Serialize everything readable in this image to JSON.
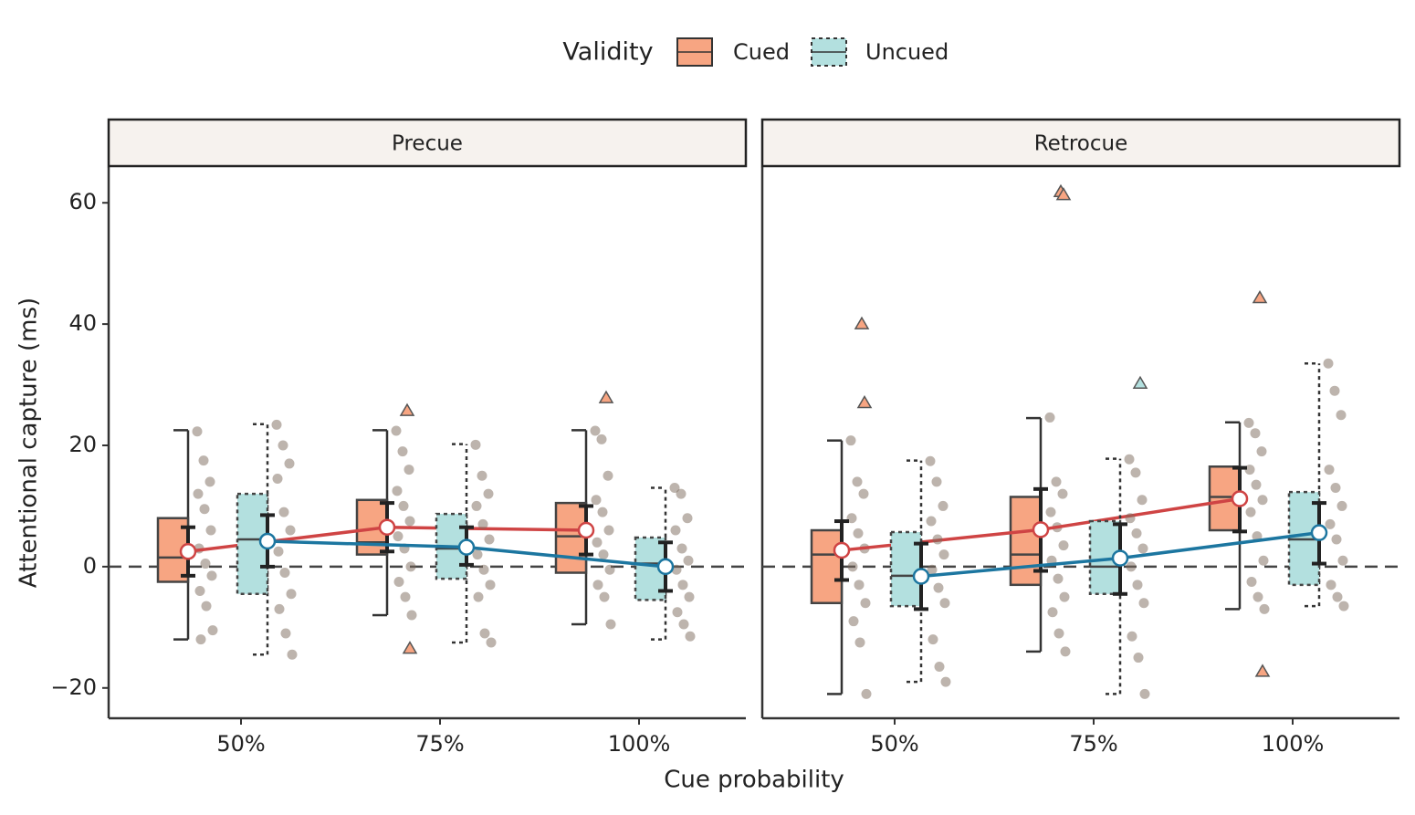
{
  "chart_data": {
    "type": "box",
    "legend_title": "Validity",
    "x_label": "Cue probability",
    "y_label": "Attentional capture (ms)",
    "facets": [
      "Precue",
      "Retrocue"
    ],
    "categories": [
      "50%",
      "75%",
      "100%"
    ],
    "ylim": [
      -25,
      65.9
    ],
    "yticks": [
      {
        "value": -20,
        "label": "−20"
      },
      0,
      20,
      40,
      60
    ],
    "hline": 0,
    "legend_position": "top",
    "point_color": "#7b6a5b",
    "series": [
      {
        "name": "Cued",
        "color": "#f7a582",
        "line_color": "#cf4444",
        "border": "solid",
        "panels": [
          [
            {
              "box": [
                -12,
                -2.5,
                1.5,
                8,
                22.5
              ],
              "mean": 2.5,
              "ci": [
                -1.5,
                6.5
              ],
              "outliers": [],
              "points": [
                22.3,
                17.5,
                14,
                12,
                9.5,
                6,
                3,
                0.5,
                -1.5,
                -4,
                -6.5,
                -10.5,
                -12
              ]
            },
            {
              "box": [
                -8,
                2,
                4,
                11,
                22.5
              ],
              "mean": 6.5,
              "ci": [
                2.5,
                10.5
              ],
              "outliers": [
                25.7,
                -13.5
              ],
              "points": [
                22.4,
                19,
                16,
                12.5,
                10,
                7.5,
                5,
                3,
                0,
                -2.5,
                -5,
                -8
              ]
            },
            {
              "box": [
                -9.5,
                -1,
                5,
                10.5,
                22.5
              ],
              "mean": 6,
              "ci": [
                2,
                10
              ],
              "outliers": [
                27.8
              ],
              "points": [
                22.4,
                21,
                15,
                11,
                9,
                6,
                4,
                2,
                -0.5,
                -3,
                -5,
                -9.5
              ]
            }
          ],
          [
            {
              "box": [
                -21,
                -6,
                2,
                6,
                20.8
              ],
              "mean": 2.7,
              "ci": [
                -2.2,
                7.5
              ],
              "outliers": [
                40,
                27
              ],
              "points": [
                20.8,
                14,
                12,
                8,
                5.5,
                3,
                0,
                -3,
                -6,
                -9,
                -12.5,
                -21
              ]
            },
            {
              "box": [
                -14,
                -3,
                2,
                11.5,
                24.5
              ],
              "mean": 6.1,
              "ci": [
                -0.7,
                12.8
              ],
              "outliers": [
                61.8,
                61.3
              ],
              "points": [
                24.6,
                14,
                12,
                9,
                6.5,
                3.5,
                1,
                -2,
                -5,
                -7.5,
                -11,
                -14
              ]
            },
            {
              "box": [
                -7,
                6,
                11.5,
                16.5,
                23.8
              ],
              "mean": 11.2,
              "ci": [
                5.8,
                16.3
              ],
              "outliers": [
                44.3,
                -17.3
              ],
              "points": [
                23.7,
                22,
                19,
                16,
                13.5,
                11,
                9,
                5,
                1,
                -2.5,
                -5,
                -7
              ]
            }
          ]
        ]
      },
      {
        "name": "Uncued",
        "color": "#b3e0df",
        "line_color": "#1c76a0",
        "border": "dotted",
        "panels": [
          [
            {
              "box": [
                -14.5,
                -4.5,
                4.5,
                12,
                23.5
              ],
              "mean": 4.2,
              "ci": [
                0,
                8.5
              ],
              "outliers": [],
              "points": [
                23.4,
                20,
                17,
                14.5,
                9,
                6,
                2.5,
                -1,
                -4.5,
                -7,
                -11,
                -14.5
              ]
            },
            {
              "box": [
                -12.5,
                -2,
                3,
                8.7,
                20.2
              ],
              "mean": 3.2,
              "ci": [
                0.3,
                6.5
              ],
              "outliers": [],
              "points": [
                20.1,
                15,
                12,
                10,
                7,
                4.5,
                2,
                -0.5,
                -3,
                -5,
                -11,
                -12.5
              ]
            },
            {
              "box": [
                -12,
                -5.5,
                0.5,
                4.8,
                13
              ],
              "mean": 0,
              "ci": [
                -4,
                4
              ],
              "outliers": [],
              "points": [
                13,
                12,
                8,
                6,
                3,
                1,
                -0.5,
                -3,
                -5,
                -7.5,
                -9.5,
                -11.5
              ]
            }
          ],
          [
            {
              "box": [
                -19,
                -6.5,
                -1.5,
                5.7,
                17.5
              ],
              "mean": -1.6,
              "ci": [
                -7,
                3.8
              ],
              "outliers": [],
              "points": [
                17.4,
                14,
                10,
                7.5,
                4.5,
                2,
                -0.5,
                -3.5,
                -6,
                -12,
                -16.5,
                -19
              ]
            },
            {
              "box": [
                -21,
                -4.5,
                0,
                7.5,
                17.8
              ],
              "mean": 1.4,
              "ci": [
                -4.5,
                7
              ],
              "outliers": [
                30.2
              ],
              "points": [
                17.7,
                15.5,
                11,
                8,
                5.5,
                3,
                0,
                -3,
                -6,
                -11.5,
                -15,
                -21
              ]
            },
            {
              "box": [
                -6.5,
                -3,
                4.5,
                12.3,
                33.5
              ],
              "mean": 5.6,
              "ci": [
                0.5,
                10.5
              ],
              "outliers": [],
              "points": [
                33.5,
                29,
                25,
                16,
                13,
                10,
                7,
                4.5,
                1,
                -3,
                -5,
                -6.5
              ]
            }
          ]
        ]
      }
    ]
  }
}
